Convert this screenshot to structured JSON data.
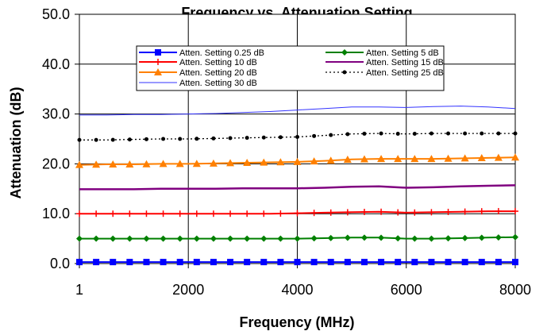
{
  "chart_data": {
    "type": "line",
    "title": "Frequency vs. Attenuation Setting",
    "xlabel": "Frequency (MHz)",
    "ylabel": "Attenuation (dB)",
    "xlim": [
      1,
      8000
    ],
    "ylim": [
      0,
      50
    ],
    "x_ticks": [
      1,
      2000,
      4000,
      6000,
      8000
    ],
    "x_tick_labels": [
      "1",
      "2000",
      "4000",
      "6000",
      "8000"
    ],
    "y_ticks": [
      0,
      10,
      20,
      30,
      40,
      50
    ],
    "y_tick_labels": [
      "0.0",
      "10.0",
      "20.0",
      "30.0",
      "40.0",
      "50.0"
    ],
    "grid": "vertical and horizontal at ticks",
    "legend_position": "top-center",
    "x": [
      1,
      500,
      1000,
      1500,
      2000,
      2500,
      3000,
      3500,
      4000,
      4500,
      5000,
      5500,
      6000,
      6500,
      7000,
      7500,
      8000
    ],
    "series": [
      {
        "name": "Atten. Setting 0.25 dB",
        "color": "#0000ff",
        "marker": "square",
        "line": "solid",
        "values": [
          0.3,
          0.3,
          0.3,
          0.3,
          0.3,
          0.3,
          0.3,
          0.3,
          0.3,
          0.3,
          0.3,
          0.3,
          0.3,
          0.3,
          0.3,
          0.3,
          0.3
        ]
      },
      {
        "name": "Atten. Setting 5 dB",
        "color": "#008000",
        "marker": "diamond",
        "line": "solid",
        "values": [
          5.0,
          5.0,
          5.0,
          5.0,
          5.0,
          5.0,
          5.0,
          5.0,
          5.0,
          5.1,
          5.2,
          5.2,
          5.0,
          5.0,
          5.1,
          5.2,
          5.3
        ]
      },
      {
        "name": "Atten. Setting 10 dB",
        "color": "#ff0000",
        "marker": "plus",
        "line": "solid",
        "values": [
          10.0,
          10.0,
          10.0,
          10.0,
          10.0,
          10.0,
          10.0,
          10.0,
          10.1,
          10.2,
          10.3,
          10.4,
          10.2,
          10.3,
          10.4,
          10.5,
          10.5
        ]
      },
      {
        "name": "Atten. Setting 15 dB",
        "color": "#800080",
        "marker": "none",
        "line": "solid",
        "values": [
          14.9,
          14.9,
          14.9,
          15.0,
          15.0,
          15.0,
          15.1,
          15.1,
          15.1,
          15.2,
          15.4,
          15.5,
          15.2,
          15.3,
          15.5,
          15.6,
          15.7
        ]
      },
      {
        "name": "Atten. Setting 20 dB",
        "color": "#ff8000",
        "marker": "triangle",
        "line": "solid",
        "values": [
          19.8,
          19.9,
          19.9,
          20.0,
          20.0,
          20.1,
          20.2,
          20.3,
          20.4,
          20.6,
          20.9,
          21.0,
          21.0,
          21.0,
          21.1,
          21.2,
          21.3
        ]
      },
      {
        "name": "Atten. Setting 25 dB",
        "color": "#000000",
        "marker": "circle",
        "line": "dotted",
        "values": [
          24.8,
          24.8,
          24.9,
          25.0,
          25.0,
          25.1,
          25.2,
          25.3,
          25.4,
          25.7,
          26.0,
          26.1,
          26.0,
          26.1,
          26.1,
          26.1,
          26.1
        ]
      },
      {
        "name": "Atten. Setting 30 dB",
        "color": "#3333ff",
        "marker": "none",
        "line": "thin",
        "values": [
          29.8,
          29.8,
          29.9,
          29.9,
          30.0,
          30.1,
          30.3,
          30.5,
          30.8,
          31.1,
          31.4,
          31.4,
          31.3,
          31.5,
          31.6,
          31.4,
          31.1
        ]
      }
    ]
  }
}
